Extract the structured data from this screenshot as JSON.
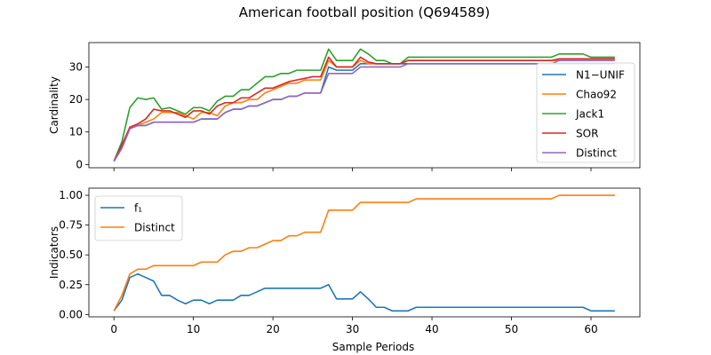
{
  "title": "American football position (Q694589)",
  "chart_data": [
    {
      "type": "line",
      "ylabel": "Cardinality",
      "xlabel": "",
      "xlim": [
        -3.15,
        66.15
      ],
      "ylim": [
        -1,
        37.5
      ],
      "xticks": [
        0,
        10,
        20,
        30,
        40,
        50,
        60
      ],
      "yticks": [
        0,
        10,
        20,
        30
      ],
      "ytick_labels": [
        "0",
        "10",
        "20",
        "30"
      ],
      "legend": "center-right",
      "series": [
        {
          "name": "N1−UNIF",
          "color": "#1f77b4",
          "values": [
            1,
            6,
            11,
            12,
            12,
            13,
            13,
            13,
            13,
            13,
            13,
            14,
            14,
            14,
            16,
            17,
            17,
            18,
            18,
            19,
            20,
            20,
            21,
            21,
            22,
            22,
            22,
            30,
            29,
            29,
            29,
            31,
            31,
            31,
            31,
            31,
            31,
            31,
            31,
            31,
            31,
            31,
            31,
            31,
            31,
            31,
            31,
            31,
            31,
            31,
            31,
            31,
            31,
            31,
            31,
            31,
            31,
            31,
            31,
            31,
            31,
            31,
            31,
            31
          ]
        },
        {
          "name": "Chao92",
          "color": "#ff7f0e",
          "values": [
            1,
            5,
            11,
            12,
            13,
            14,
            16,
            16,
            16,
            15,
            14,
            16,
            16,
            15,
            18,
            19,
            19,
            20,
            20,
            22,
            23,
            24,
            25,
            25,
            26,
            26,
            26,
            32,
            30,
            30,
            30,
            32,
            31,
            31,
            31,
            31,
            31,
            32,
            32,
            32,
            32,
            32,
            32,
            32,
            32,
            32,
            32,
            32,
            32,
            32,
            32,
            32,
            32,
            32,
            32,
            32,
            32,
            32,
            32,
            32,
            32,
            32,
            32,
            32
          ]
        },
        {
          "name": "Jack1",
          "color": "#2ca02c",
          "values": [
            1,
            7,
            17.5,
            20.5,
            20,
            20.5,
            17,
            17.5,
            16.5,
            15.5,
            17.5,
            17.5,
            16.5,
            19.5,
            21,
            21,
            23,
            23,
            25,
            27,
            27,
            28,
            28,
            29,
            29,
            29,
            29,
            35.5,
            32,
            32,
            32,
            35.5,
            34,
            32,
            32,
            31,
            31,
            33,
            33,
            33,
            33,
            33,
            33,
            33,
            33,
            33,
            33,
            33,
            33,
            33,
            33,
            33,
            33,
            33,
            33,
            33,
            34,
            34,
            34,
            34,
            33,
            33,
            33,
            33
          ]
        },
        {
          "name": "SOR",
          "color": "#d62728",
          "values": [
            1,
            6,
            11.5,
            12.5,
            14,
            17,
            16.5,
            16.5,
            15.5,
            14.5,
            16.5,
            16.5,
            15.5,
            18,
            19,
            19,
            20.5,
            20.5,
            22,
            23.5,
            23.5,
            24.5,
            25.5,
            26,
            26.5,
            27,
            27,
            33,
            30,
            30,
            30,
            33,
            31.5,
            31,
            31,
            31,
            31,
            32,
            32,
            32,
            32,
            32,
            32,
            32,
            32,
            32,
            32,
            32,
            32,
            32,
            32,
            32,
            32,
            32,
            32,
            32,
            32.5,
            32.5,
            32.5,
            32.5,
            32.5,
            32.5,
            32.5,
            32.5
          ]
        },
        {
          "name": "Distinct",
          "color": "#9467bd",
          "values": [
            1,
            5,
            11,
            12,
            12,
            13,
            13,
            13,
            13,
            13,
            13,
            14,
            14,
            14,
            16,
            17,
            17,
            18,
            18,
            19,
            20,
            20,
            21,
            21,
            22,
            22,
            22,
            28,
            28,
            28,
            28,
            30,
            30,
            30,
            30,
            30,
            30,
            31,
            31,
            31,
            31,
            31,
            31,
            31,
            31,
            31,
            31,
            31,
            31,
            31,
            31,
            31,
            31,
            31,
            31,
            31,
            32,
            32,
            32,
            32,
            32,
            32,
            32,
            32
          ]
        }
      ]
    },
    {
      "type": "line",
      "ylabel": "Indicators",
      "xlabel": "Sample Periods",
      "xlim": [
        -3.15,
        66.15
      ],
      "ylim": [
        -0.02,
        1.06
      ],
      "xticks": [
        0,
        10,
        20,
        30,
        40,
        50,
        60
      ],
      "xtick_labels": [
        "0",
        "10",
        "20",
        "30",
        "40",
        "50",
        "60"
      ],
      "yticks": [
        0,
        0.25,
        0.5,
        0.75,
        1.0
      ],
      "ytick_labels": [
        "0.00",
        "0.25",
        "0.50",
        "0.75",
        "1.00"
      ],
      "legend": "top-left",
      "series": [
        {
          "name": "f₁",
          "color": "#1f77b4",
          "values": [
            0.03,
            0.12,
            0.31,
            0.34,
            0.31,
            0.28,
            0.16,
            0.16,
            0.12,
            0.09,
            0.12,
            0.12,
            0.09,
            0.12,
            0.12,
            0.12,
            0.16,
            0.16,
            0.19,
            0.22,
            0.22,
            0.22,
            0.22,
            0.22,
            0.22,
            0.22,
            0.22,
            0.25,
            0.13,
            0.13,
            0.13,
            0.19,
            0.13,
            0.06,
            0.06,
            0.03,
            0.03,
            0.03,
            0.06,
            0.06,
            0.06,
            0.06,
            0.06,
            0.06,
            0.06,
            0.06,
            0.06,
            0.06,
            0.06,
            0.06,
            0.06,
            0.06,
            0.06,
            0.06,
            0.06,
            0.06,
            0.06,
            0.06,
            0.06,
            0.06,
            0.03,
            0.03,
            0.03,
            0.03
          ]
        },
        {
          "name": "Distinct",
          "color": "#ff7f0e",
          "values": [
            0.03,
            0.16,
            0.34,
            0.38,
            0.38,
            0.41,
            0.41,
            0.41,
            0.41,
            0.41,
            0.41,
            0.44,
            0.44,
            0.44,
            0.5,
            0.53,
            0.53,
            0.56,
            0.56,
            0.59,
            0.62,
            0.62,
            0.66,
            0.66,
            0.69,
            0.69,
            0.69,
            0.875,
            0.875,
            0.875,
            0.875,
            0.94,
            0.94,
            0.94,
            0.94,
            0.94,
            0.94,
            0.94,
            0.97,
            0.97,
            0.97,
            0.97,
            0.97,
            0.97,
            0.97,
            0.97,
            0.97,
            0.97,
            0.97,
            0.97,
            0.97,
            0.97,
            0.97,
            0.97,
            0.97,
            0.97,
            1,
            1,
            1,
            1,
            1,
            1,
            1,
            1
          ]
        }
      ]
    }
  ]
}
